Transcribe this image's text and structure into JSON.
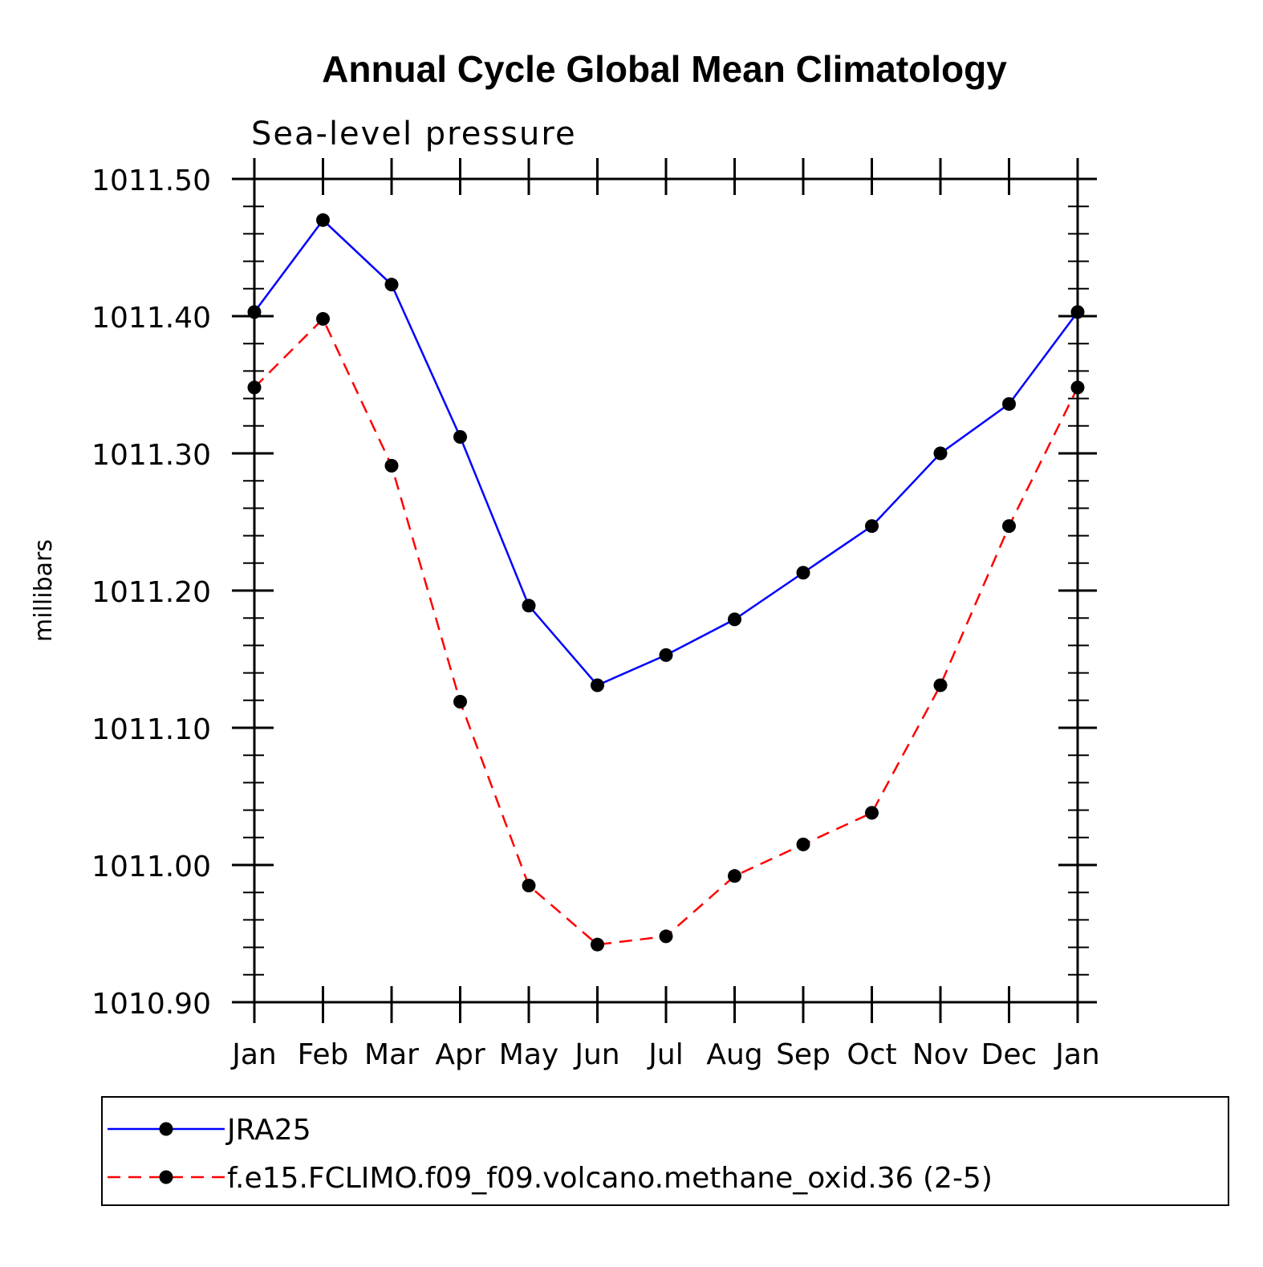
{
  "chart_data": {
    "type": "line",
    "title": "Annual Cycle Global Mean Climatology",
    "subtitle": "Sea-level pressure",
    "xlabel": "",
    "ylabel": "millibars",
    "categories": [
      "Jan",
      "Feb",
      "Mar",
      "Apr",
      "May",
      "Jun",
      "Jul",
      "Aug",
      "Sep",
      "Oct",
      "Nov",
      "Dec",
      "Jan"
    ],
    "ylim": [
      1010.9,
      1011.5
    ],
    "yticks": [
      1010.9,
      1011.0,
      1011.1,
      1011.2,
      1011.3,
      1011.4,
      1011.5
    ],
    "ytick_labels": [
      "1010.90",
      "1011.00",
      "1011.10",
      "1011.20",
      "1011.30",
      "1011.40",
      "1011.50"
    ],
    "grid": false,
    "legend_position": "bottom",
    "series": [
      {
        "name": "JRA25",
        "color": "#0000ff",
        "line_style": "solid",
        "marker": "filled-circle",
        "marker_color": "#000000",
        "values": [
          1011.403,
          1011.47,
          1011.423,
          1011.312,
          1011.189,
          1011.131,
          1011.153,
          1011.179,
          1011.213,
          1011.247,
          1011.3,
          1011.336,
          1011.403
        ]
      },
      {
        "name": "f.e15.FCLIMO.f09_f09.volcano.methane_oxid.36 (2-5)",
        "color": "#ff0000",
        "line_style": "dashed",
        "marker": "filled-circle",
        "marker_color": "#000000",
        "values": [
          1011.348,
          1011.398,
          1011.291,
          1011.119,
          1010.985,
          1010.942,
          1010.948,
          1010.992,
          1011.015,
          1011.038,
          1011.131,
          1011.247,
          1011.348
        ]
      }
    ]
  }
}
